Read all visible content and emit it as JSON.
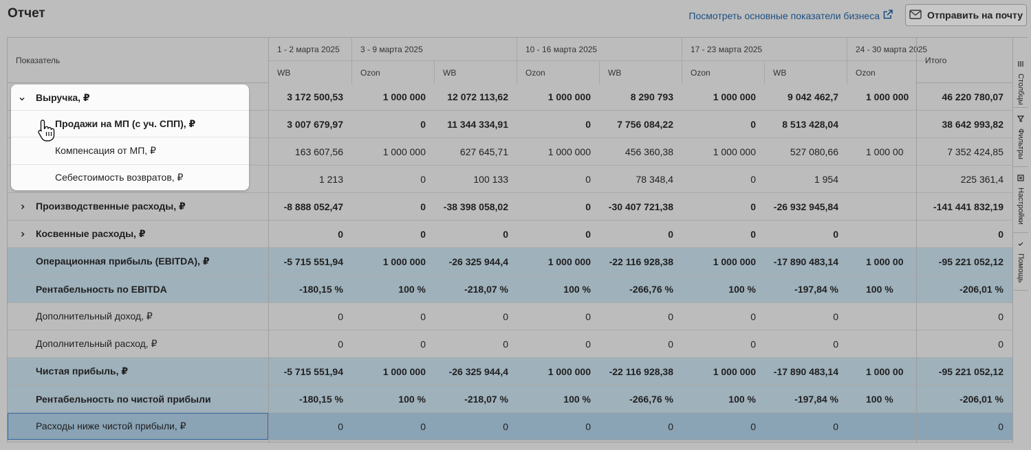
{
  "header": {
    "title": "Отчет",
    "biz_link": "Посмотреть основные показатели бизнеса",
    "send_button": "Отправить на почту"
  },
  "table": {
    "indicator_header": "Показатель",
    "total_header": "Итого",
    "periods": [
      "1 - 2 марта 2025",
      "3 - 9 марта 2025",
      "10 - 16 марта 2025",
      "17 - 23 марта 2025",
      "24 - 30 марта 2025"
    ],
    "sub_headers": [
      "WB",
      "Ozon",
      "WB",
      "Ozon",
      "WB",
      "Ozon",
      "WB",
      "Ozon"
    ],
    "rows": [
      {
        "label": "Выручка, ₽",
        "values": [
          "3 172 500,53",
          "1 000 000",
          "12 072 113,62",
          "1 000 000",
          "8 290 793",
          "1 000 000",
          "9 042 462,7",
          "1 000 000"
        ],
        "total": "46 220 780,07"
      },
      {
        "label": "Продажи на МП (с уч. СПП), ₽",
        "values": [
          "3 007 679,97",
          "0",
          "11 344 334,91",
          "0",
          "7 756 084,22",
          "0",
          "8 513 428,04",
          ""
        ],
        "total": "38 642 993,82"
      },
      {
        "label": "Компенсация от МП, ₽",
        "values": [
          "163 607,56",
          "1 000 000",
          "627 645,71",
          "1 000 000",
          "456 360,38",
          "1 000 000",
          "527 080,66",
          "1 000 00"
        ],
        "total": "7 352 424,85"
      },
      {
        "label": "Себестоимость возвратов, ₽",
        "values": [
          "1 213",
          "0",
          "100 133",
          "0",
          "78 348,4",
          "0",
          "1 954",
          ""
        ],
        "total": "225 361,4"
      },
      {
        "label": "Производственные расходы, ₽",
        "values": [
          "-8 888 052,47",
          "0",
          "-38 398 058,02",
          "0",
          "-30 407 721,38",
          "0",
          "-26 932 945,84",
          ""
        ],
        "total": "-141 441 832,19"
      },
      {
        "label": "Косвенные расходы, ₽",
        "values": [
          "0",
          "0",
          "0",
          "0",
          "0",
          "0",
          "0",
          ""
        ],
        "total": "0"
      },
      {
        "label": "Операционная прибыль (EBITDA), ₽",
        "values": [
          "-5 715 551,94",
          "1 000 000",
          "-26 325 944,4",
          "1 000 000",
          "-22 116 928,38",
          "1 000 000",
          "-17 890 483,14",
          "1 000 00"
        ],
        "total": "-95 221 052,12"
      },
      {
        "label": "Рентабельность по EBITDA",
        "values": [
          "-180,15 %",
          "100 %",
          "-218,07 %",
          "100 %",
          "-266,76 %",
          "100 %",
          "-197,84 %",
          "100 %"
        ],
        "total": "-206,01 %"
      },
      {
        "label": "Дополнительный доход, ₽",
        "values": [
          "0",
          "0",
          "0",
          "0",
          "0",
          "0",
          "0",
          ""
        ],
        "total": "0"
      },
      {
        "label": "Дополнительный расход, ₽",
        "values": [
          "0",
          "0",
          "0",
          "0",
          "0",
          "0",
          "0",
          ""
        ],
        "total": "0"
      },
      {
        "label": "Чистая прибыль, ₽",
        "values": [
          "-5 715 551,94",
          "1 000 000",
          "-26 325 944,4",
          "1 000 000",
          "-22 116 928,38",
          "1 000 000",
          "-17 890 483,14",
          "1 000 00"
        ],
        "total": "-95 221 052,12"
      },
      {
        "label": "Рентабельность по чистой прибыли",
        "values": [
          "-180,15 %",
          "100 %",
          "-218,07 %",
          "100 %",
          "-266,76 %",
          "100 %",
          "-197,84 %",
          "100 %"
        ],
        "total": "-206,01 %"
      },
      {
        "label": "Расходы ниже чистой прибыли, ₽",
        "values": [
          "0",
          "0",
          "0",
          "0",
          "0",
          "0",
          "0",
          ""
        ],
        "total": "0"
      }
    ]
  },
  "side_panel": {
    "tabs": [
      "Столбцы",
      "Фильтры",
      "Настройки",
      "Помощь"
    ]
  },
  "colors": {
    "link": "#1d4f82",
    "highlight_row": "#9fb1bb",
    "selected_row": "#8aa3b5"
  }
}
